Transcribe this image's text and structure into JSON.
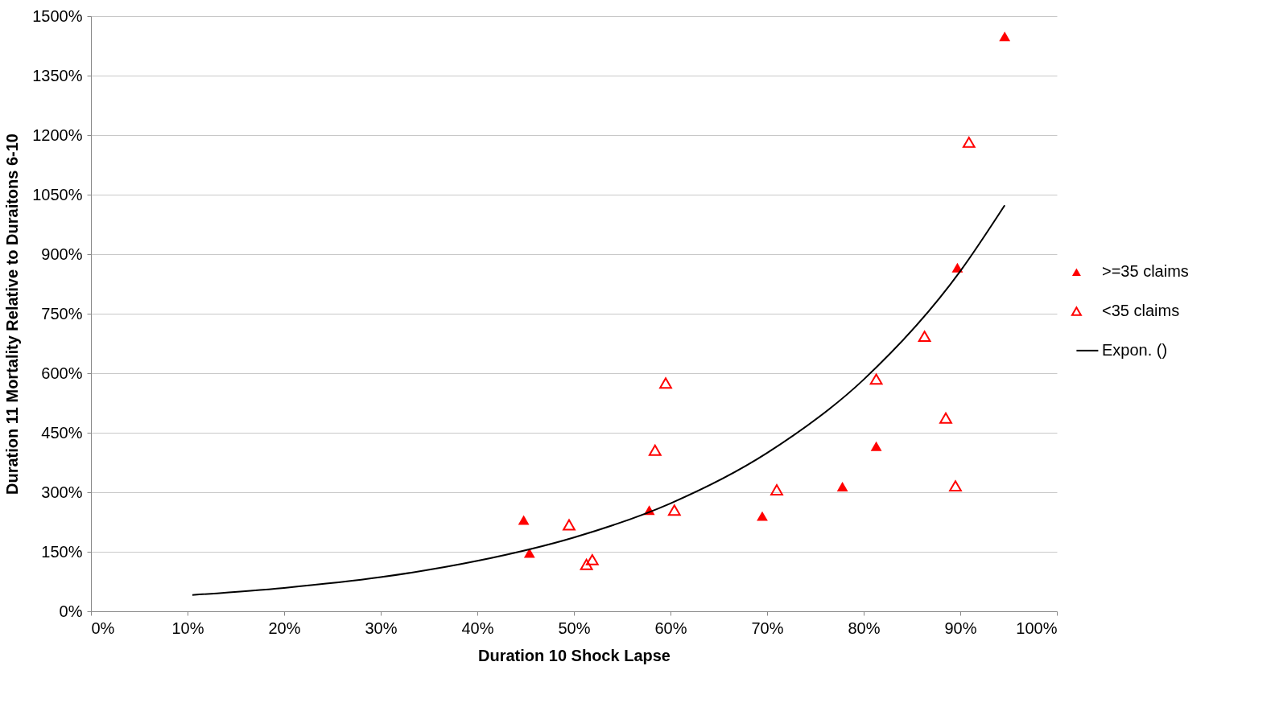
{
  "chart_data": {
    "type": "scatter",
    "xlabel": "Duration 10 Shock Lapse",
    "ylabel": "Duration 11 Mortality Relative to Duraitons 6-10",
    "xlim": [
      0,
      100
    ],
    "ylim": [
      0,
      1500
    ],
    "xticks": [
      {
        "value": 0,
        "label": "0%"
      },
      {
        "value": 10,
        "label": "10%"
      },
      {
        "value": 20,
        "label": "20%"
      },
      {
        "value": 30,
        "label": "30%"
      },
      {
        "value": 40,
        "label": "40%"
      },
      {
        "value": 50,
        "label": "50%"
      },
      {
        "value": 60,
        "label": "60%"
      },
      {
        "value": 70,
        "label": "70%"
      },
      {
        "value": 80,
        "label": "80%"
      },
      {
        "value": 90,
        "label": "90%"
      },
      {
        "value": 100,
        "label": "100%"
      }
    ],
    "yticks": [
      {
        "value": 0,
        "label": "0%"
      },
      {
        "value": 150,
        "label": "150%"
      },
      {
        "value": 300,
        "label": "300%"
      },
      {
        "value": 450,
        "label": "450%"
      },
      {
        "value": 600,
        "label": "600%"
      },
      {
        "value": 750,
        "label": "750%"
      },
      {
        "value": 900,
        "label": "900%"
      },
      {
        "value": 1050,
        "label": "1050%"
      },
      {
        "value": 1200,
        "label": "1200%"
      },
      {
        "value": 1350,
        "label": "1350%"
      },
      {
        "value": 1500,
        "label": "1500%"
      }
    ],
    "grid": "y",
    "legend": "right",
    "marker": "triangle",
    "series": [
      {
        "name": ">=35 claims",
        "color": "#ff0000",
        "x": [
          44.8,
          45.4,
          57.8,
          69.5,
          77.8,
          81.3,
          89.7,
          94.6
        ],
        "values": [
          230,
          147,
          255,
          240,
          314,
          416,
          866,
          1449
        ]
      },
      {
        "name": "<35 claims",
        "color": "#ff0000",
        "x": [
          49.5,
          51.3,
          51.9,
          58.4,
          59.5,
          60.4,
          71.0,
          81.3,
          86.3,
          88.5,
          89.5,
          90.9
        ],
        "values": [
          218,
          118,
          130,
          406,
          575,
          255,
          306,
          585,
          693,
          487,
          316,
          1182
        ]
      },
      {
        "name": "Expon. ()",
        "type": "line",
        "color": "#000000",
        "marker": "none",
        "line_style": "solid",
        "x": [
          10.5,
          20,
          30,
          40,
          50,
          60,
          70,
          80,
          90,
          94.6
        ],
        "values": [
          41,
          59,
          86,
          127,
          186,
          272,
          399,
          584,
          857,
          1023
        ]
      }
    ]
  }
}
